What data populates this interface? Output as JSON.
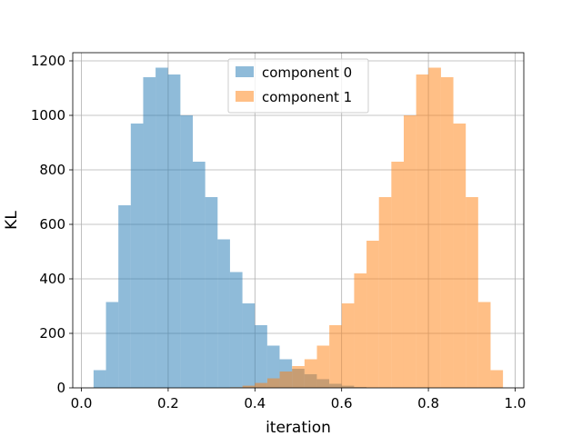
{
  "chart_data": {
    "type": "bar",
    "xlabel": "iteration",
    "ylabel": "KL",
    "xlim": [
      -0.02,
      1.02
    ],
    "ylim": [
      0,
      1200
    ],
    "x_ticks": [
      0.0,
      0.2,
      0.4,
      0.6,
      0.8,
      1.0
    ],
    "x_tick_labels": [
      "0.0",
      "0.2",
      "0.4",
      "0.6",
      "0.8",
      "1.0"
    ],
    "y_ticks": [
      0,
      200,
      400,
      600,
      800,
      1000,
      1200
    ],
    "y_tick_labels": [
      "0",
      "200",
      "400",
      "600",
      "800",
      "1000",
      "1200"
    ],
    "grid": true,
    "legend_position": "top-center",
    "series": [
      {
        "name": "component 0",
        "color": "#1f77b4",
        "opacity": 0.5,
        "bin_edges": [
          0.028,
          0.0566,
          0.0852,
          0.1138,
          0.1424,
          0.171,
          0.1996,
          0.2282,
          0.2568,
          0.2854,
          0.314,
          0.3426,
          0.3712,
          0.3998,
          0.4284,
          0.457,
          0.4856,
          0.5142,
          0.5428,
          0.5714,
          0.6,
          0.6286,
          0.6572
        ],
        "counts": [
          65,
          315,
          670,
          970,
          1140,
          1175,
          1150,
          1000,
          830,
          700,
          545,
          425,
          310,
          230,
          155,
          105,
          70,
          50,
          32,
          15,
          8,
          3
        ]
      },
      {
        "name": "component 1",
        "color": "#ff7f0e",
        "opacity": 0.5,
        "bin_edges": [
          0.3428,
          0.3714,
          0.4,
          0.4286,
          0.4572,
          0.4858,
          0.5144,
          0.543,
          0.5716,
          0.6002,
          0.6288,
          0.6574,
          0.686,
          0.7146,
          0.7432,
          0.7718,
          0.8004,
          0.829,
          0.8576,
          0.8862,
          0.9148,
          0.9434,
          0.972
        ],
        "counts": [
          2,
          8,
          18,
          35,
          60,
          80,
          105,
          155,
          230,
          310,
          420,
          540,
          700,
          830,
          1000,
          1150,
          1175,
          1140,
          970,
          700,
          315,
          65
        ]
      }
    ]
  }
}
